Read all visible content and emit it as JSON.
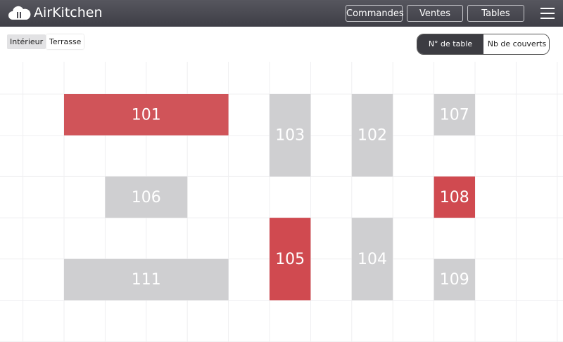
{
  "header": {
    "title": "AirKitchen",
    "nav": [
      "Commandes",
      "Ventes",
      "Tables"
    ]
  },
  "rooms": {
    "tabs": [
      "Intérieur",
      "Terrasse"
    ],
    "selected": 0
  },
  "view_toggle": {
    "options": [
      "N° de table",
      "Nb de couverts"
    ],
    "selected": 0
  },
  "tables": [
    {
      "label": "101",
      "color": "#d05459"
    },
    {
      "label": "103",
      "color": "#cfcfd1"
    },
    {
      "label": "102",
      "color": "#cfcfd1"
    },
    {
      "label": "107",
      "color": "#cfcfd1"
    },
    {
      "label": "106",
      "color": "#cfcfd1"
    },
    {
      "label": "108",
      "color": "#d04a50"
    },
    {
      "label": "105",
      "color": "#d04a50"
    },
    {
      "label": "104",
      "color": "#cfcfd1"
    },
    {
      "label": "111",
      "color": "#cfcfd1"
    },
    {
      "label": "109",
      "color": "#cfcfd1"
    }
  ]
}
